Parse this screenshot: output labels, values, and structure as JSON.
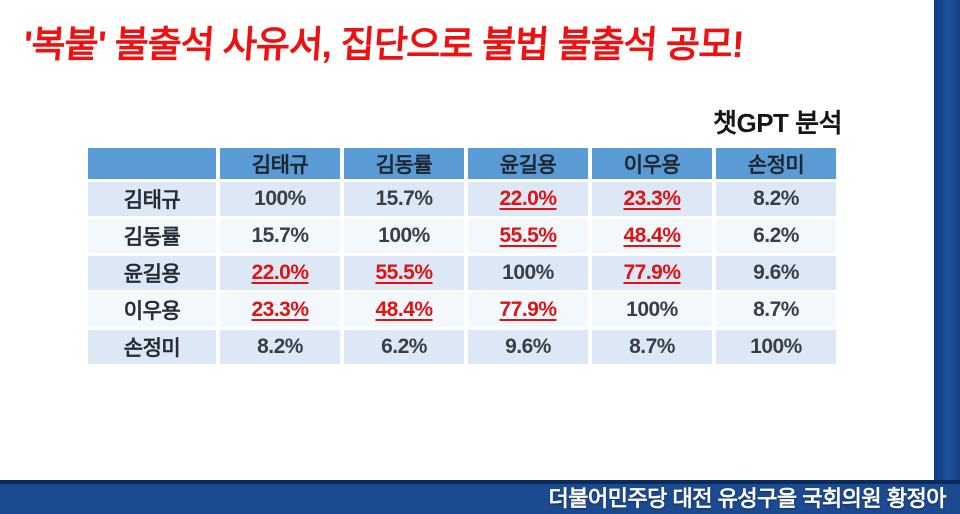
{
  "title": "'복붙' 불출석 사유서, 집단으로 불법 불출석 공모!",
  "analysis_label": "챗GPT 분석",
  "table": {
    "header": [
      "",
      "김태규",
      "김동률",
      "윤길용",
      "이우용",
      "손정미"
    ],
    "rows": [
      {
        "name": "김태규",
        "values": [
          {
            "text": "100%",
            "red": false
          },
          {
            "text": "15.7%",
            "red": false
          },
          {
            "text": "22.0%",
            "red": true
          },
          {
            "text": "23.3%",
            "red": true
          },
          {
            "text": "8.2%",
            "red": false
          }
        ]
      },
      {
        "name": "김동률",
        "values": [
          {
            "text": "15.7%",
            "red": false
          },
          {
            "text": "100%",
            "red": false
          },
          {
            "text": "55.5%",
            "red": true
          },
          {
            "text": "48.4%",
            "red": true
          },
          {
            "text": "6.2%",
            "red": false
          }
        ]
      },
      {
        "name": "윤길용",
        "values": [
          {
            "text": "22.0%",
            "red": true
          },
          {
            "text": "55.5%",
            "red": true
          },
          {
            "text": "100%",
            "red": false
          },
          {
            "text": "77.9%",
            "red": true
          },
          {
            "text": "9.6%",
            "red": false
          }
        ]
      },
      {
        "name": "이우용",
        "values": [
          {
            "text": "23.3%",
            "red": true
          },
          {
            "text": "48.4%",
            "red": true
          },
          {
            "text": "77.9%",
            "red": true
          },
          {
            "text": "100%",
            "red": false
          },
          {
            "text": "8.7%",
            "red": false
          }
        ]
      },
      {
        "name": "손정미",
        "values": [
          {
            "text": "8.2%",
            "red": false
          },
          {
            "text": "6.2%",
            "red": false
          },
          {
            "text": "9.6%",
            "red": false
          },
          {
            "text": "8.7%",
            "red": false
          },
          {
            "text": "100%",
            "red": false
          }
        ]
      }
    ]
  },
  "chart_data": {
    "type": "table",
    "title": "챗GPT 분석",
    "columns": [
      "김태규",
      "김동률",
      "윤길용",
      "이우용",
      "손정미"
    ],
    "rows": [
      "김태규",
      "김동률",
      "윤길용",
      "이우용",
      "손정미"
    ],
    "unit": "%",
    "values": [
      [
        100,
        15.7,
        22.0,
        23.3,
        8.2
      ],
      [
        15.7,
        100,
        55.5,
        48.4,
        6.2
      ],
      [
        22.0,
        55.5,
        100,
        77.9,
        9.6
      ],
      [
        23.3,
        48.4,
        77.9,
        100,
        8.7
      ],
      [
        8.2,
        6.2,
        9.6,
        8.7,
        100
      ]
    ],
    "highlighted_red_cells": [
      [
        0,
        2
      ],
      [
        0,
        3
      ],
      [
        1,
        2
      ],
      [
        1,
        3
      ],
      [
        2,
        0
      ],
      [
        2,
        1
      ],
      [
        2,
        3
      ],
      [
        3,
        0
      ],
      [
        3,
        1
      ],
      [
        3,
        2
      ]
    ]
  },
  "footer": {
    "text": "더불어민주당 대전 유성구을 국회의원 황정아"
  },
  "colors": {
    "title_red": "#ee1111",
    "highlight_red": "#e01212",
    "header_blue": "#5b9bd5",
    "row_tint_blue": "#dce8f5",
    "row_light": "#f3f8fd",
    "footer_blue": "#1c4a90",
    "footer_border_navy": "#0b2b5a",
    "side_strip_blue": "#1e52a0"
  }
}
